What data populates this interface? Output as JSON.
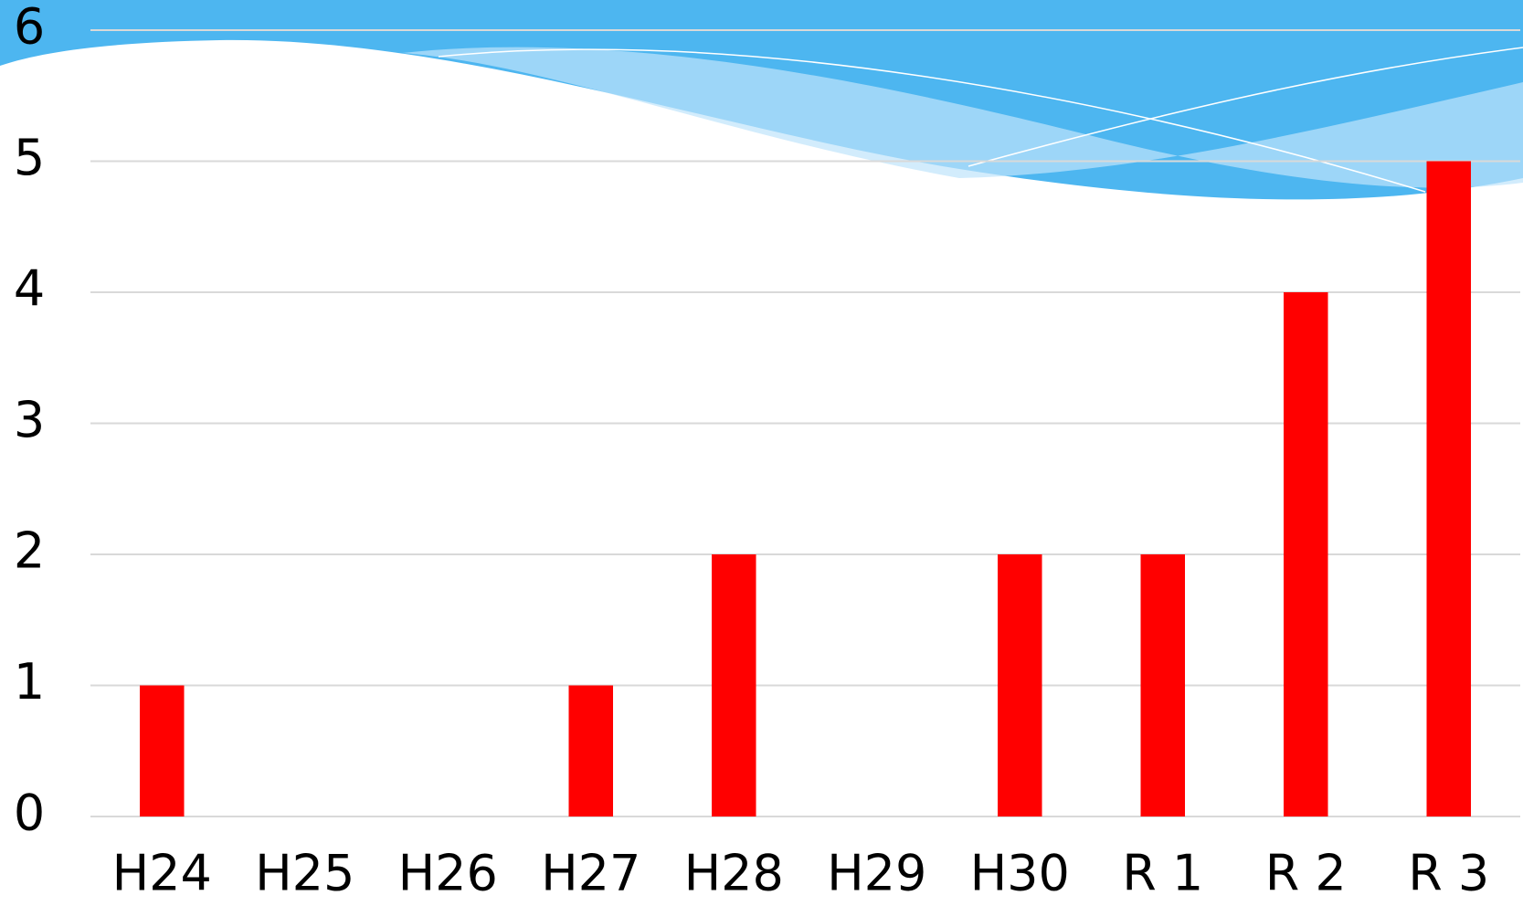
{
  "chart_data": {
    "type": "bar",
    "categories": [
      "H24",
      "H25",
      "H26",
      "H27",
      "H28",
      "H29",
      "H30",
      "R 1",
      "R 2",
      "R 3"
    ],
    "values": [
      1,
      0,
      0,
      1,
      2,
      0,
      2,
      2,
      4,
      5
    ],
    "color": "#ff0000",
    "ylim": [
      0,
      6
    ],
    "yticks": [
      0,
      1,
      2,
      3,
      4,
      5,
      6
    ],
    "grid": true
  }
}
